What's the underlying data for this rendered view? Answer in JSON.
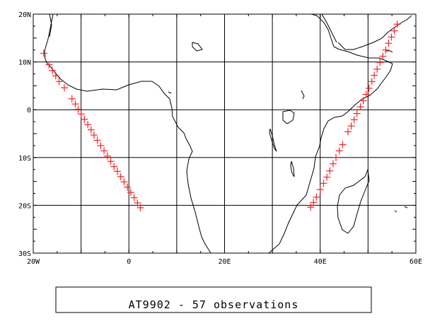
{
  "map": {
    "title": "AT9902 - 57 observations",
    "lon_range": [
      -20,
      60
    ],
    "lat_range": [
      -30,
      20
    ],
    "x_ticks": [
      {
        "value": -20,
        "label": "20W"
      },
      {
        "value": 0,
        "label": "0"
      },
      {
        "value": 20,
        "label": "20E"
      },
      {
        "value": 40,
        "label": "40E"
      },
      {
        "value": 60,
        "label": "60E"
      }
    ],
    "y_ticks": [
      {
        "value": 20,
        "label": "20N"
      },
      {
        "value": 10,
        "label": "10N"
      },
      {
        "value": 0,
        "label": "0"
      },
      {
        "value": -10,
        "label": "10S"
      },
      {
        "value": -20,
        "label": "20S"
      },
      {
        "value": -30,
        "label": "30S"
      }
    ],
    "gridline_lons": [
      -10,
      0,
      10,
      20,
      30,
      40,
      50
    ],
    "gridline_lats": [
      10,
      0,
      -10,
      -20
    ],
    "marker_symbol": "+",
    "marker_color": "#ff2020",
    "coast_color": "#000000",
    "grid_color": "#000000"
  },
  "chart_data": {
    "type": "scatter",
    "title": "AT9902 - 57 observations",
    "xlabel": "",
    "ylabel": "",
    "xlim": [
      -20,
      60
    ],
    "ylim": [
      -30,
      20
    ],
    "grid": true,
    "series": [
      {
        "values": [
          {
            "lon": -17.8,
            "lat": 11.8
          },
          {
            "lon": -16.7,
            "lat": 9.4
          },
          {
            "lon": -16.0,
            "lat": 8.2
          },
          {
            "lon": -15.3,
            "lat": 7.1
          },
          {
            "lon": -14.6,
            "lat": 5.9
          },
          {
            "lon": -13.5,
            "lat": 4.6
          },
          {
            "lon": -11.9,
            "lat": 2.3
          },
          {
            "lon": -11.2,
            "lat": 1.2
          },
          {
            "lon": -10.6,
            "lat": 0.1
          },
          {
            "lon": -10.0,
            "lat": -0.9
          },
          {
            "lon": -9.3,
            "lat": -2.0
          },
          {
            "lon": -8.6,
            "lat": -3.1
          },
          {
            "lon": -7.9,
            "lat": -4.2
          },
          {
            "lon": -7.3,
            "lat": -5.3
          },
          {
            "lon": -6.6,
            "lat": -6.4
          },
          {
            "lon": -5.9,
            "lat": -7.5
          },
          {
            "lon": -5.2,
            "lat": -8.6
          },
          {
            "lon": -4.5,
            "lat": -9.7
          },
          {
            "lon": -3.8,
            "lat": -10.8
          },
          {
            "lon": -3.1,
            "lat": -11.9
          },
          {
            "lon": -2.4,
            "lat": -12.9
          },
          {
            "lon": -1.7,
            "lat": -14.0
          },
          {
            "lon": -1.0,
            "lat": -15.1
          },
          {
            "lon": -0.3,
            "lat": -16.2
          },
          {
            "lon": 0.4,
            "lat": -17.3
          },
          {
            "lon": 1.1,
            "lat": -18.4
          },
          {
            "lon": 1.8,
            "lat": -19.5
          },
          {
            "lon": 2.4,
            "lat": -20.5
          },
          {
            "lon": 38.0,
            "lat": -20.4
          },
          {
            "lon": 38.6,
            "lat": -19.4
          },
          {
            "lon": 39.2,
            "lat": -18.3
          },
          {
            "lon": 40.0,
            "lat": -16.7
          },
          {
            "lon": 40.7,
            "lat": -15.4
          },
          {
            "lon": 41.4,
            "lat": -14.1
          },
          {
            "lon": 42.0,
            "lat": -12.8
          },
          {
            "lon": 42.7,
            "lat": -11.3
          },
          {
            "lon": 43.3,
            "lat": -10.0
          },
          {
            "lon": 44.0,
            "lat": -8.6
          },
          {
            "lon": 44.7,
            "lat": -7.3
          },
          {
            "lon": 45.8,
            "lat": -4.6
          },
          {
            "lon": 46.5,
            "lat": -3.4
          },
          {
            "lon": 47.1,
            "lat": -2.1
          },
          {
            "lon": 47.7,
            "lat": -0.8
          },
          {
            "lon": 48.4,
            "lat": 0.6
          },
          {
            "lon": 49.0,
            "lat": 1.9
          },
          {
            "lon": 49.6,
            "lat": 3.2
          },
          {
            "lon": 50.2,
            "lat": 4.5
          },
          {
            "lon": 50.8,
            "lat": 5.9
          },
          {
            "lon": 51.3,
            "lat": 7.2
          },
          {
            "lon": 51.9,
            "lat": 8.5
          },
          {
            "lon": 52.5,
            "lat": 9.9
          },
          {
            "lon": 53.1,
            "lat": 11.2
          },
          {
            "lon": 53.7,
            "lat": 12.5
          },
          {
            "lon": 54.3,
            "lat": 13.9
          },
          {
            "lon": 54.9,
            "lat": 15.2
          },
          {
            "lon": 55.5,
            "lat": 16.5
          },
          {
            "lon": 56.1,
            "lat": 17.9
          }
        ]
      }
    ]
  }
}
